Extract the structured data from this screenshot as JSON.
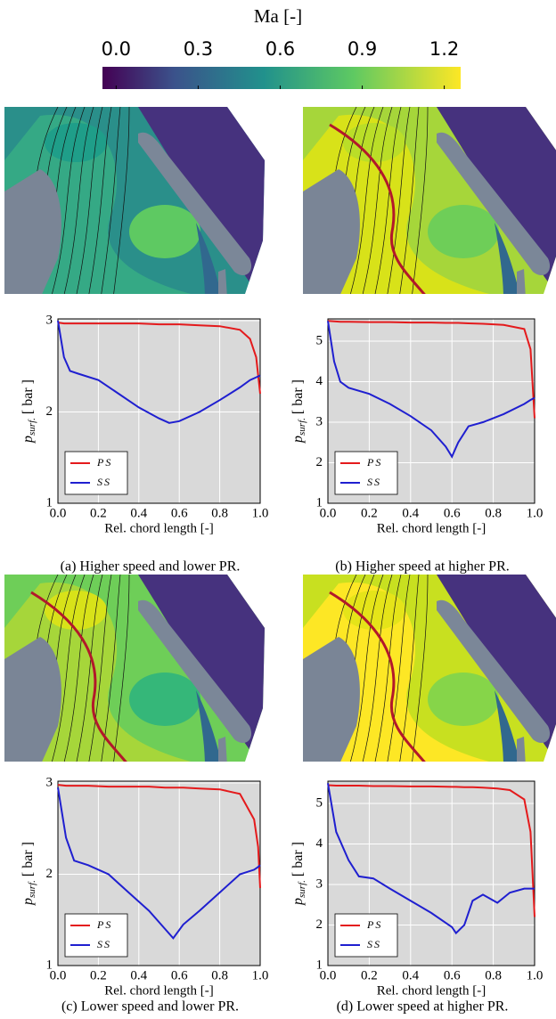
{
  "colorbar": {
    "label": "Ma [-]",
    "range": [
      -0.05,
      1.26
    ],
    "ticks": [
      {
        "value": 0,
        "label": "0.0"
      },
      {
        "value": 0.3,
        "label": "0.3"
      },
      {
        "value": 0.6,
        "label": "0.6"
      },
      {
        "value": 0.9,
        "label": "0.9"
      },
      {
        "value": 1.2,
        "label": "1.2"
      }
    ]
  },
  "chart_data": [
    {
      "type": "line",
      "caption": "(a) Higher speed and lower PR.",
      "xlabel": "Rel. chord length [-]",
      "ylabel": {
        "main": "p",
        "sub": "surf.",
        "unit": "[ bar ]"
      },
      "xlim": [
        0,
        1
      ],
      "ylim": [
        1,
        3.02
      ],
      "xticks": [
        {
          "value": 0,
          "label": "0.0"
        },
        {
          "value": 0.2,
          "label": "0.2"
        },
        {
          "value": 0.4,
          "label": "0.4"
        },
        {
          "value": 0.6,
          "label": "0.6"
        },
        {
          "value": 0.8,
          "label": "0.8"
        },
        {
          "value": 1,
          "label": "1.0"
        }
      ],
      "yticks": [
        1,
        2,
        3
      ],
      "grid": true,
      "legend": "lower left",
      "x": [
        0,
        0.03,
        0.06,
        0.1,
        0.2,
        0.3,
        0.4,
        0.5,
        0.55,
        0.6,
        0.7,
        0.8,
        0.9,
        0.95,
        0.98,
        1.0
      ],
      "series": [
        {
          "name": "PS",
          "color": "#e41a1c",
          "values": [
            2.98,
            2.97,
            2.97,
            2.97,
            2.97,
            2.97,
            2.97,
            2.96,
            2.96,
            2.96,
            2.95,
            2.94,
            2.9,
            2.8,
            2.6,
            2.2
          ]
        },
        {
          "name": "SS",
          "color": "#1f1fd0",
          "values": [
            3.0,
            2.6,
            2.45,
            2.42,
            2.35,
            2.2,
            2.05,
            1.93,
            1.88,
            1.9,
            2.0,
            2.13,
            2.27,
            2.35,
            2.38,
            2.4
          ]
        }
      ]
    },
    {
      "type": "line",
      "caption": "(b) Higher speed at higher PR.",
      "xlabel": "Rel. chord length [-]",
      "ylabel": {
        "main": "p",
        "sub": "surf.",
        "unit": "[ bar ]"
      },
      "xlim": [
        0,
        1
      ],
      "ylim": [
        1,
        5.55
      ],
      "xticks": [
        {
          "value": 0,
          "label": "0.0"
        },
        {
          "value": 0.2,
          "label": "0.2"
        },
        {
          "value": 0.4,
          "label": "0.4"
        },
        {
          "value": 0.6,
          "label": "0.6"
        },
        {
          "value": 0.8,
          "label": "0.8"
        },
        {
          "value": 1,
          "label": "1.0"
        }
      ],
      "yticks": [
        1,
        2,
        3,
        4,
        5
      ],
      "grid": true,
      "legend": "lower left",
      "x": [
        0,
        0.03,
        0.06,
        0.1,
        0.2,
        0.3,
        0.4,
        0.5,
        0.57,
        0.6,
        0.63,
        0.68,
        0.75,
        0.85,
        0.95,
        0.98,
        1.0
      ],
      "series": [
        {
          "name": "PS",
          "color": "#e41a1c",
          "values": [
            5.5,
            5.49,
            5.48,
            5.48,
            5.47,
            5.47,
            5.46,
            5.46,
            5.45,
            5.45,
            5.45,
            5.44,
            5.43,
            5.4,
            5.3,
            4.8,
            3.1
          ]
        },
        {
          "name": "SS",
          "color": "#1f1fd0",
          "values": [
            5.5,
            4.5,
            4.0,
            3.85,
            3.7,
            3.45,
            3.15,
            2.8,
            2.4,
            2.15,
            2.5,
            2.9,
            3.0,
            3.2,
            3.45,
            3.55,
            3.6
          ]
        }
      ]
    },
    {
      "type": "line",
      "caption": "(c) Lower speed and lower PR.",
      "xlabel": "Rel. chord length [-]",
      "ylabel": {
        "main": "p",
        "sub": "surf.",
        "unit": "[ bar ]"
      },
      "xlim": [
        0,
        1
      ],
      "ylim": [
        1,
        3.02
      ],
      "xticks": [
        {
          "value": 0,
          "label": "0.0"
        },
        {
          "value": 0.2,
          "label": "0.2"
        },
        {
          "value": 0.4,
          "label": "0.4"
        },
        {
          "value": 0.6,
          "label": "0.6"
        },
        {
          "value": 0.8,
          "label": "0.8"
        },
        {
          "value": 1,
          "label": "1.0"
        }
      ],
      "yticks": [
        1,
        2,
        3
      ],
      "grid": true,
      "legend": "lower left",
      "x": [
        0,
        0.04,
        0.08,
        0.15,
        0.25,
        0.35,
        0.45,
        0.53,
        0.57,
        0.62,
        0.7,
        0.8,
        0.9,
        0.97,
        0.99,
        1.0
      ],
      "series": [
        {
          "name": "PS",
          "color": "#e41a1c",
          "values": [
            2.98,
            2.97,
            2.97,
            2.97,
            2.96,
            2.96,
            2.96,
            2.95,
            2.95,
            2.95,
            2.94,
            2.93,
            2.88,
            2.6,
            2.3,
            1.85
          ]
        },
        {
          "name": "SS",
          "color": "#1f1fd0",
          "values": [
            2.95,
            2.4,
            2.15,
            2.1,
            2.0,
            1.8,
            1.6,
            1.4,
            1.3,
            1.45,
            1.6,
            1.8,
            2.0,
            2.05,
            2.08,
            2.1
          ]
        }
      ]
    },
    {
      "type": "line",
      "caption": "(d) Lower speed at higher PR.",
      "xlabel": "Rel. chord length [-]",
      "ylabel": {
        "main": "p",
        "sub": "surf.",
        "unit": "[ bar ]"
      },
      "xlim": [
        0,
        1
      ],
      "ylim": [
        1,
        5.55
      ],
      "xticks": [
        {
          "value": 0,
          "label": "0.0"
        },
        {
          "value": 0.2,
          "label": "0.2"
        },
        {
          "value": 0.4,
          "label": "0.4"
        },
        {
          "value": 0.6,
          "label": "0.6"
        },
        {
          "value": 0.8,
          "label": "0.8"
        },
        {
          "value": 1,
          "label": "1.0"
        }
      ],
      "yticks": [
        1,
        2,
        3,
        4,
        5
      ],
      "grid": true,
      "legend": "lower left",
      "x": [
        0,
        0.04,
        0.1,
        0.15,
        0.22,
        0.3,
        0.4,
        0.5,
        0.6,
        0.62,
        0.66,
        0.7,
        0.75,
        0.82,
        0.88,
        0.95,
        0.98,
        1.0
      ],
      "series": [
        {
          "name": "PS",
          "color": "#e41a1c",
          "values": [
            5.45,
            5.44,
            5.44,
            5.44,
            5.43,
            5.43,
            5.42,
            5.42,
            5.41,
            5.41,
            5.4,
            5.4,
            5.39,
            5.37,
            5.33,
            5.1,
            4.3,
            2.2
          ]
        },
        {
          "name": "SS",
          "color": "#1f1fd0",
          "values": [
            5.5,
            4.3,
            3.6,
            3.2,
            3.15,
            2.9,
            2.6,
            2.3,
            1.95,
            1.8,
            2.0,
            2.6,
            2.75,
            2.55,
            2.8,
            2.9,
            2.9,
            2.9
          ]
        }
      ]
    }
  ]
}
